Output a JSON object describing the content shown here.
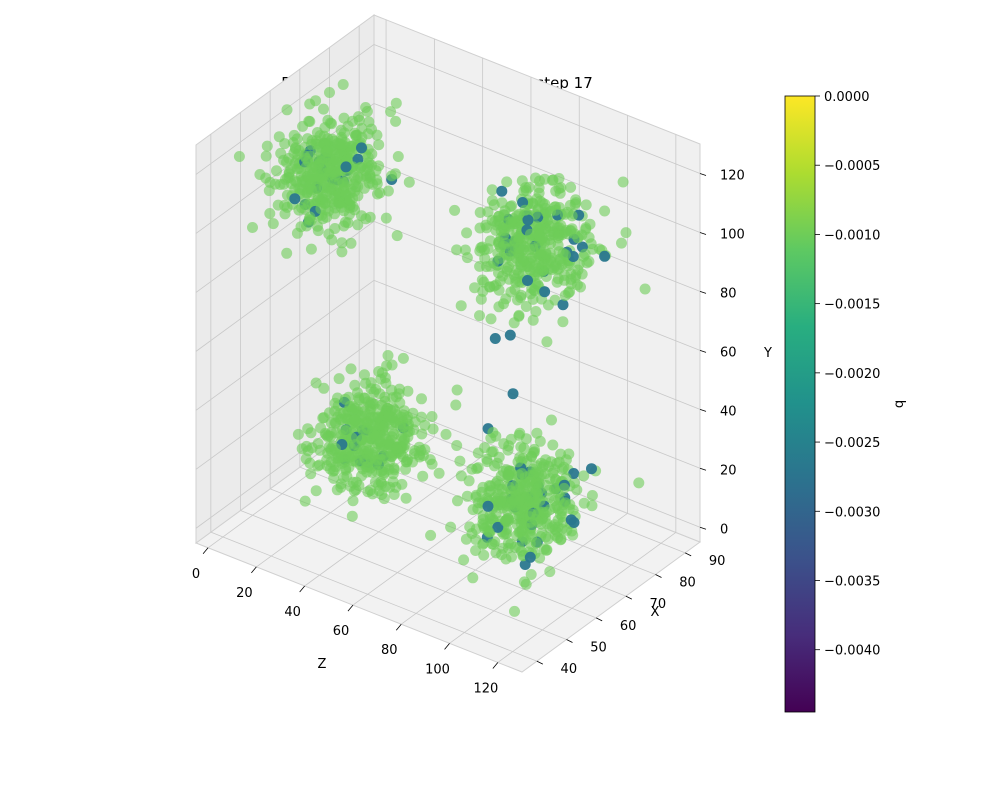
{
  "chart_data": {
    "type": "scatter",
    "title": "Binned 3D Scatter Plot of q - Timestep 17",
    "axes": {
      "x": {
        "label": "Z",
        "ticks": [
          "0",
          "20",
          "40",
          "60",
          "80",
          "100",
          "120"
        ],
        "range": [
          -5,
          130
        ]
      },
      "y": {
        "label": "X",
        "ticks": [
          "40",
          "50",
          "60",
          "70",
          "80",
          "90"
        ],
        "range": [
          35,
          95
        ]
      },
      "z": {
        "label": "Y",
        "ticks": [
          "0",
          "20",
          "40",
          "60",
          "80",
          "100",
          "120"
        ],
        "range": [
          -5,
          130
        ]
      }
    },
    "colorbar": {
      "label": "q",
      "ticks": [
        "0.0000",
        "−0.0005",
        "−0.0010",
        "−0.0015",
        "−0.0020",
        "−0.0025",
        "−0.0030",
        "−0.0035",
        "−0.0040"
      ],
      "tick_values": [
        0.0,
        -0.0005,
        -0.001,
        -0.0015,
        -0.002,
        -0.0025,
        -0.003,
        -0.0035,
        -0.004
      ],
      "range": [
        -0.00445,
        0.0
      ],
      "colormap": "viridis"
    },
    "grid": true,
    "clusters": [
      {
        "name": "",
        "center": [
          20,
          60,
          110
        ],
        "spread": [
          14,
          10,
          14
        ]
      },
      {
        "name": "",
        "center": [
          30,
          65,
          20
        ],
        "spread": [
          14,
          10,
          14
        ]
      },
      {
        "name": "",
        "center": [
          80,
          80,
          90
        ],
        "spread": [
          16,
          10,
          16
        ]
      },
      {
        "name": "",
        "center": [
          100,
          60,
          25
        ],
        "spread": [
          14,
          10,
          14
        ]
      }
    ],
    "typical_q": -0.001,
    "outlier_q": -0.0027
  }
}
